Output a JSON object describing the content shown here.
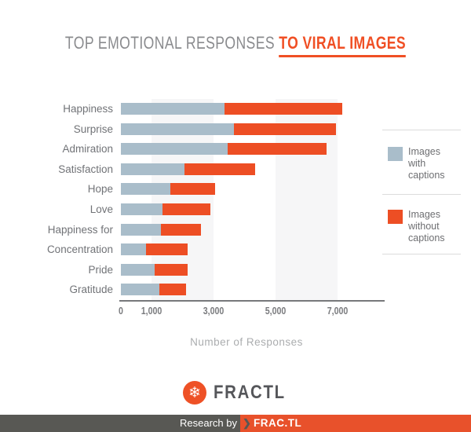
{
  "title": {
    "gray_part": "TOP EMOTIONAL RESPONSES ",
    "orange_part": "TO VIRAL IMAGES",
    "orange_color": "#f04f24",
    "gray_color": "#8a8b8e"
  },
  "chart_data": {
    "type": "bar",
    "orientation": "horizontal",
    "stacked": true,
    "title": "Top Emotional Responses to Viral Images",
    "categories": [
      "Happiness",
      "Surprise",
      "Admiration",
      "Satisfaction",
      "Hope",
      "Love",
      "Happiness for",
      "Concentration",
      "Pride",
      "Gratitude"
    ],
    "series": [
      {
        "name": "Images with captions",
        "color": "#a9bdca",
        "values": [
          3350,
          3650,
          3450,
          2050,
          1600,
          1350,
          1300,
          800,
          1100,
          1250
        ]
      },
      {
        "name": "Images without captions",
        "color": "#ed4e24",
        "values": [
          3800,
          3300,
          3200,
          2300,
          1450,
          1550,
          1300,
          1350,
          1050,
          850
        ]
      }
    ],
    "xlabel": "Number of Responses",
    "xlim": [
      0,
      8500
    ],
    "x_tick_values": [
      0,
      1000,
      3000,
      5000,
      7000
    ],
    "x_tick_labels": [
      "0",
      "1,000",
      "3,000",
      "5,000",
      "7,000"
    ],
    "background_band_ranges": [
      [
        1000,
        3000
      ],
      [
        5000,
        7000
      ]
    ],
    "background_band_color": "#f6f6f7",
    "grid": false,
    "legend_position": "right"
  },
  "legend": {
    "items": [
      {
        "label": "Images with captions",
        "color": "#a9bdca"
      },
      {
        "label": "Images without captions",
        "color": "#ed4e24"
      }
    ]
  },
  "logo": {
    "icon": "snowflake-icon",
    "glyph": "❄",
    "text": "FRACTL",
    "circle_color": "#ee5126"
  },
  "footer": {
    "research_by": "Research by",
    "chevron": "❯",
    "brand": "FRAC.TL",
    "orange_color": "#e8512b",
    "gray_color": "#585854"
  }
}
